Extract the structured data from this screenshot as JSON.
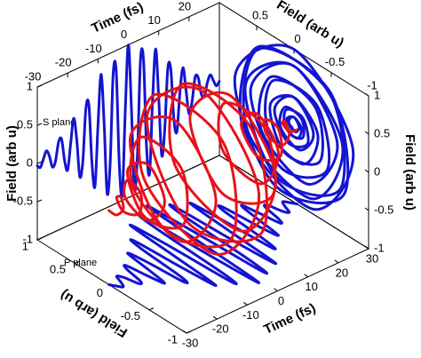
{
  "chart_data": {
    "type": "line3d",
    "time": [
      -30,
      -29,
      -28,
      -27,
      -26,
      -25,
      -24,
      -23,
      -22,
      -21,
      -20,
      -19,
      -18,
      -17,
      -16,
      -15,
      -14,
      -13,
      -12,
      -11,
      -10,
      -9,
      -8,
      -7,
      -6,
      -5,
      -4,
      -3,
      -2,
      -1,
      0,
      1,
      2,
      3,
      4,
      5,
      6,
      7,
      8,
      9,
      10,
      11,
      12,
      13,
      14,
      15,
      16,
      17,
      18,
      19,
      20,
      21,
      22,
      23,
      24,
      25,
      26,
      27,
      28,
      29,
      30
    ],
    "series": [
      {
        "name": "S plane",
        "color": "#1414d2",
        "values": [
          -0.03,
          -0.07,
          0.02,
          0.11,
          0.02,
          -0.14,
          -0.08,
          0.15,
          0.17,
          -0.13,
          -0.27,
          0.06,
          0.37,
          0.07,
          -0.43,
          -0.25,
          0.42,
          0.45,
          -0.32,
          -0.65,
          0.13,
          0.78,
          0.14,
          -0.81,
          -0.45,
          0.71,
          0.73,
          -0.49,
          -0.93,
          0.17,
          1.0,
          0.17,
          -0.93,
          -0.49,
          0.73,
          0.71,
          -0.45,
          -0.81,
          0.14,
          0.78,
          0.13,
          -0.65,
          -0.32,
          0.45,
          0.42,
          -0.25,
          -0.43,
          0.07,
          0.37,
          0.06,
          -0.27,
          -0.13,
          0.17,
          0.15,
          -0.08,
          -0.14,
          0.02,
          0.11,
          0.02,
          -0.07,
          -0.03
        ]
      },
      {
        "name": "P plane",
        "color": "#1414d2",
        "values": [
          0.04,
          -0.02,
          -0.07,
          0,
          0.1,
          0.04,
          -0.12,
          -0.1,
          0.12,
          0.18,
          -0.08,
          -0.26,
          0,
          0.32,
          0.12,
          -0.35,
          -0.28,
          0.31,
          0.44,
          -0.19,
          -0.58,
          0,
          0.65,
          0.24,
          -0.62,
          -0.48,
          0.49,
          0.67,
          -0.27,
          -0.79,
          0,
          0.79,
          0.27,
          -0.67,
          -0.49,
          0.48,
          0.62,
          -0.24,
          -0.65,
          0,
          0.58,
          0.19,
          -0.44,
          -0.31,
          0.28,
          0.35,
          -0.12,
          -0.32,
          0,
          0.26,
          0.08,
          -0.18,
          -0.12,
          0.1,
          0.12,
          -0.04,
          -0.1,
          0,
          0.07,
          0.02,
          -0.04
        ]
      }
    ],
    "trajectory_color": "#e8121a",
    "axes": {
      "time": {
        "label": "Time (fs)",
        "lim": [
          -30,
          30
        ],
        "ticks": [
          -30,
          -20,
          -10,
          0,
          10,
          20,
          30
        ]
      },
      "s": {
        "label": "Field (arb u)",
        "lim": [
          -1,
          1
        ],
        "ticks": [
          -1,
          -0.5,
          0,
          0.5,
          1
        ]
      },
      "p": {
        "label": "Field (arb u)",
        "lim": [
          -1,
          1
        ],
        "ticks": [
          -1,
          -0.5,
          0,
          0.5,
          1
        ]
      }
    }
  }
}
